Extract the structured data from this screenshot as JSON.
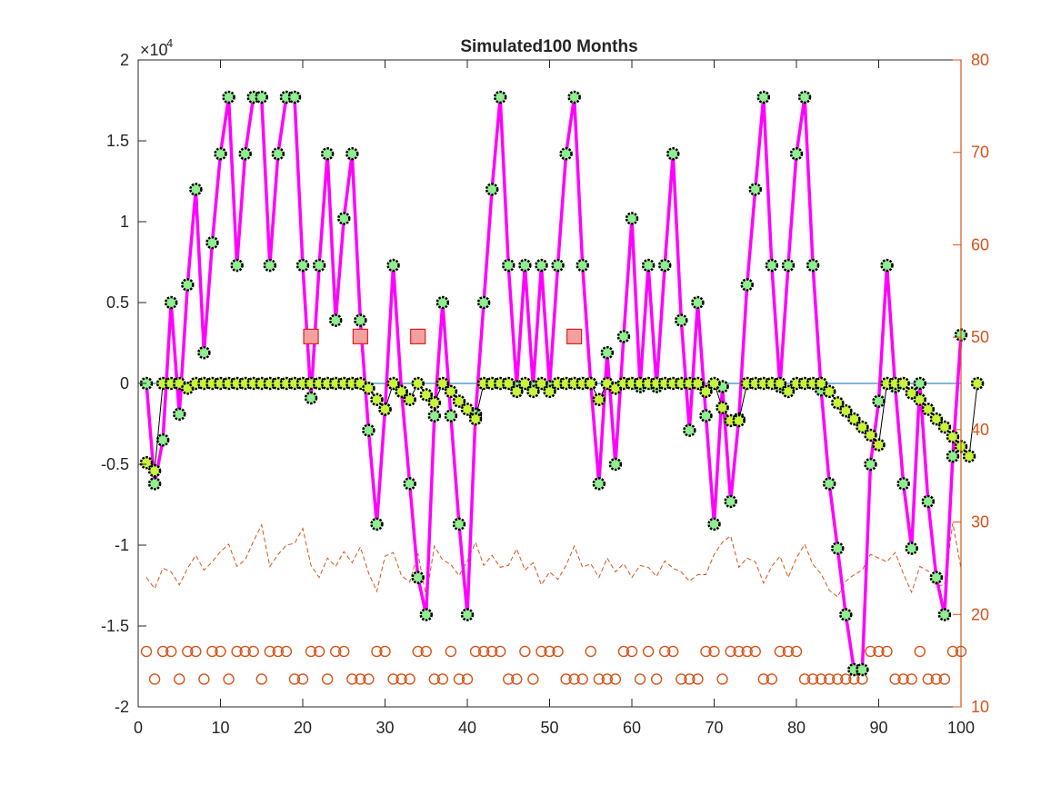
{
  "chart_data": {
    "type": "line",
    "title": "Simulated100 Months",
    "xlabel": "",
    "ylabel": "",
    "xlim": [
      0,
      100
    ],
    "ylim_left": [
      -20000,
      20000
    ],
    "ylim_right": [
      10,
      80
    ],
    "left_exponent_label": "×10",
    "left_exponent_power": "4",
    "x_ticks": [
      "0",
      "10",
      "20",
      "30",
      "40",
      "50",
      "60",
      "70",
      "80",
      "90",
      "100"
    ],
    "y_left_ticks": [
      "-2",
      "-1.5",
      "-1",
      "-0.5",
      "0",
      "0.5",
      "1",
      "1.5",
      "2"
    ],
    "y_right_ticks": [
      "10",
      "20",
      "30",
      "40",
      "50",
      "60",
      "70",
      "80"
    ],
    "grid": false,
    "colors": {
      "magenta_line": "#FF00FF",
      "green_marker": "#90EE90",
      "yellow_marker": "#C8F53C",
      "zero_line": "#0072BD",
      "orange": "#D95319",
      "red_square": "#F4A0A0",
      "red_square_edge": "#E02020"
    },
    "series": [
      {
        "values": [
          0,
          -6200,
          -3500,
          5000,
          -1900,
          6100,
          12000,
          1900,
          8700,
          14200,
          17700,
          7300,
          14200,
          17700,
          17700,
          7300,
          14200,
          17700,
          17700,
          7300,
          -900,
          7300,
          14200,
          3900,
          10200,
          14200,
          3900,
          -2900,
          -8700,
          -1600,
          7300,
          -500,
          -6200,
          -12000,
          -14300,
          -2000,
          5000,
          -2000,
          -8700,
          -14300,
          -1900,
          5000,
          12000,
          17700,
          7300,
          -200,
          7300,
          -200,
          7300,
          -200,
          7300,
          14200,
          17700,
          7300,
          0,
          -6200,
          1900,
          -5000,
          2900,
          10200,
          -200,
          7300,
          -200,
          7300,
          14200,
          3900,
          -2900,
          5000,
          -2000,
          -8700,
          -200,
          -7300,
          -2200,
          6100,
          12000,
          17700,
          7300,
          -200,
          7300,
          14200,
          17700,
          7300,
          -400,
          -6200,
          -10200,
          -14300,
          -17700,
          -17700,
          -5000,
          -1100,
          7300,
          -200,
          -6200,
          -10200,
          0,
          -7300,
          -12000,
          -14300,
          -4500,
          3000
        ]
      },
      {
        "values": [
          -4900,
          -5400,
          0,
          0,
          0,
          -300,
          0,
          0,
          0,
          0,
          0,
          0,
          0,
          0,
          0,
          0,
          0,
          0,
          0,
          0,
          0,
          0,
          0,
          0,
          0,
          0,
          0,
          -300,
          -1000,
          -1600,
          0,
          -500,
          -1000,
          0,
          -700,
          -1200,
          0,
          -500,
          -1100,
          -1600,
          -2200,
          0,
          0,
          0,
          0,
          -500,
          0,
          -500,
          0,
          -500,
          0,
          0,
          0,
          0,
          0,
          -1000,
          0,
          -300,
          0,
          0,
          0,
          0,
          0,
          0,
          0,
          0,
          0,
          0,
          -500,
          0,
          -1500,
          -2300,
          -2300,
          0,
          0,
          0,
          0,
          0,
          -500,
          0,
          0,
          0,
          0,
          -500,
          -1200,
          -1700,
          -2200,
          -2700,
          -3200,
          -3800,
          0,
          0,
          0,
          -600,
          -1000,
          -1600,
          -2200,
          -2700,
          -3300,
          -3900,
          -4500,
          0
        ]
      },
      {
        "values": [
          24,
          22.8,
          25,
          24.6,
          23.2,
          25,
          26.4,
          24.8,
          25.7,
          26.8,
          27.6,
          25.2,
          25.9,
          27.9,
          29.7,
          25.2,
          26.5,
          27.5,
          27.7,
          29.3,
          25.3,
          24,
          26.1,
          25.2,
          26.8,
          25.6,
          27.3,
          24.5,
          22.5,
          26.3,
          26.7,
          24.2,
          23.5,
          26.6,
          21.9,
          27.4,
          25.9,
          25.4,
          24.2,
          25.8,
          27.8,
          25.3,
          26.4,
          25.1,
          25.3,
          27.1,
          24.8,
          25.6,
          23.2,
          24.6,
          23.8,
          25.3,
          27.4,
          25.1,
          25.5,
          24,
          26.1,
          24.6,
          25.5,
          24,
          25.3,
          25.1,
          24.1,
          25.8,
          25,
          24.6,
          23.6,
          24.3,
          24.3,
          26.5,
          27.8,
          28.5,
          25.1,
          26.1,
          25.7,
          23.4,
          25.2,
          26.3,
          24,
          26.1,
          27.6,
          25.4,
          24.4,
          22.6,
          21.9,
          23.6,
          24.3,
          24.8,
          26.5,
          26.1,
          25.7,
          26.7,
          24.4,
          22.4,
          25.2,
          24.7,
          23.1,
          23.2,
          29.9,
          25
        ]
      },
      {
        "values": [
          16,
          13,
          16,
          16,
          13,
          16,
          16,
          13,
          16,
          16,
          13,
          16,
          16,
          16,
          13,
          16,
          16,
          16,
          13,
          13,
          16,
          16,
          13,
          16,
          16,
          13,
          13,
          13,
          16,
          16,
          13,
          13,
          13,
          16,
          16,
          13,
          13,
          16,
          13,
          13,
          16,
          16,
          16,
          16,
          13,
          13,
          16,
          13,
          16,
          16,
          16,
          13,
          13,
          13,
          16,
          13,
          13,
          13,
          16,
          16,
          13,
          16,
          13,
          16,
          16,
          13,
          13,
          13,
          16,
          16,
          13,
          16,
          16,
          16,
          16,
          13,
          13,
          16,
          16,
          16,
          13,
          13,
          13,
          13,
          13,
          13,
          13,
          13,
          16,
          16,
          16,
          13,
          13,
          13,
          16,
          13,
          13,
          13,
          16,
          16
        ]
      },
      {
        "x": [
          21,
          27,
          34,
          53
        ],
        "values": [
          2900,
          2900,
          2900,
          2900
        ]
      }
    ]
  }
}
